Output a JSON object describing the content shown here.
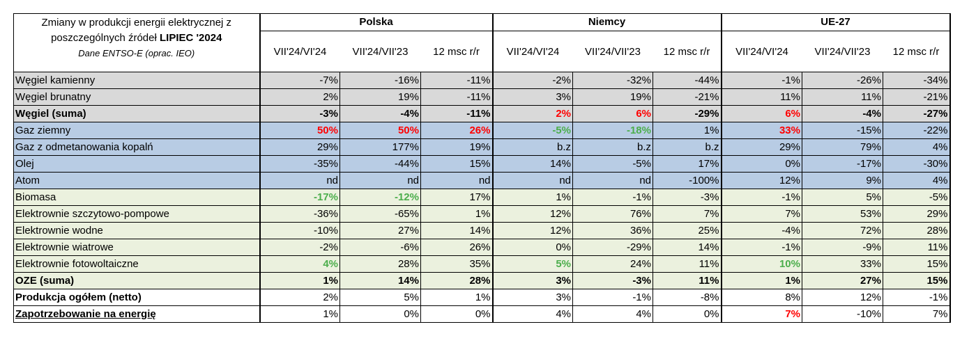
{
  "header": {
    "title_line1": "Zmiany w produkcji energii elektrycznej  z",
    "title_line2_prefix": "poszczególnych źródeł ",
    "title_line2_bold": "LIPIEC '2024",
    "source": "Dane  ENTSO-E (oprac. IEO)"
  },
  "groups": [
    "Polska",
    "Niemcy",
    "UE-27"
  ],
  "columns": [
    "VII'24/VI'24",
    "VII'24/VII'23",
    "12 msc r/r"
  ],
  "rows": [
    {
      "label": "Węgiel kamienny",
      "style": "grey",
      "bold": false,
      "values": [
        "-7%",
        "-16%",
        "-11%",
        "-2%",
        "-32%",
        "-44%",
        "-1%",
        "-26%",
        "-34%"
      ],
      "colors": [
        "",
        "",
        "",
        "",
        "",
        "",
        "",
        "",
        ""
      ]
    },
    {
      "label": "Węgiel brunatny",
      "style": "grey",
      "bold": false,
      "values": [
        "2%",
        "19%",
        "-11%",
        "3%",
        "19%",
        "-21%",
        "11%",
        "11%",
        "-21%"
      ],
      "colors": [
        "",
        "",
        "",
        "",
        "",
        "",
        "",
        "",
        ""
      ]
    },
    {
      "label": "Węgiel (suma)",
      "style": "grey",
      "bold": true,
      "values": [
        "-3%",
        "-4%",
        "-11%",
        "2%",
        "6%",
        "-29%",
        "6%",
        "-4%",
        "-27%"
      ],
      "colors": [
        "",
        "",
        "",
        "red",
        "red",
        "",
        "red",
        "",
        ""
      ]
    },
    {
      "label": "Gaz ziemny",
      "style": "blue",
      "bold": false,
      "values": [
        "50%",
        "50%",
        "26%",
        "-5%",
        "-18%",
        "1%",
        "33%",
        "-15%",
        "-22%"
      ],
      "colors": [
        "red",
        "red",
        "red",
        "green",
        "green",
        "",
        "red",
        "",
        ""
      ]
    },
    {
      "label": "Gaz z odmetanowania kopalń",
      "style": "blue",
      "bold": false,
      "values": [
        "29%",
        "177%",
        "19%",
        "b.z",
        "b.z",
        "b.z",
        "29%",
        "79%",
        "4%"
      ],
      "colors": [
        "",
        "",
        "",
        "",
        "",
        "",
        "",
        "",
        ""
      ]
    },
    {
      "label": "Olej",
      "style": "blue",
      "bold": false,
      "values": [
        "-35%",
        "-44%",
        "15%",
        "14%",
        "-5%",
        "17%",
        "0%",
        "-17%",
        "-30%"
      ],
      "colors": [
        "",
        "",
        "",
        "",
        "",
        "",
        "",
        "",
        ""
      ]
    },
    {
      "label": "Atom",
      "style": "blue",
      "bold": false,
      "values": [
        "nd",
        "nd",
        "nd",
        "nd",
        "nd",
        "-100%",
        "12%",
        "9%",
        "4%"
      ],
      "colors": [
        "",
        "",
        "",
        "",
        "",
        "",
        "",
        "",
        ""
      ]
    },
    {
      "label": "Biomasa",
      "style": "green",
      "bold": false,
      "values": [
        "-17%",
        "-12%",
        "17%",
        "1%",
        "-1%",
        "-3%",
        "-1%",
        "5%",
        "-5%"
      ],
      "colors": [
        "green",
        "green",
        "",
        "",
        "",
        "",
        "",
        "",
        ""
      ]
    },
    {
      "label": "Elektrownie szczytowo-pompowe",
      "style": "green",
      "bold": false,
      "values": [
        "-36%",
        "-65%",
        "1%",
        "12%",
        "76%",
        "7%",
        "7%",
        "53%",
        "29%"
      ],
      "colors": [
        "",
        "",
        "",
        "",
        "",
        "",
        "",
        "",
        ""
      ]
    },
    {
      "label": "Elektrownie wodne",
      "style": "green",
      "bold": false,
      "values": [
        "-10%",
        "27%",
        "14%",
        "12%",
        "36%",
        "25%",
        "-4%",
        "72%",
        "28%"
      ],
      "colors": [
        "",
        "",
        "",
        "",
        "",
        "",
        "",
        "",
        ""
      ]
    },
    {
      "label": "Elektrownie wiatrowe",
      "style": "green",
      "bold": false,
      "values": [
        "-2%",
        "-6%",
        "26%",
        "0%",
        "-29%",
        "14%",
        "-1%",
        "-9%",
        "11%"
      ],
      "colors": [
        "",
        "",
        "",
        "",
        "",
        "",
        "",
        "",
        ""
      ]
    },
    {
      "label": "Elektrownie fotowoltaiczne",
      "style": "green",
      "bold": false,
      "values": [
        "4%",
        "28%",
        "35%",
        "5%",
        "24%",
        "11%",
        "10%",
        "33%",
        "15%"
      ],
      "colors": [
        "green",
        "",
        "",
        "green",
        "",
        "",
        "green",
        "",
        ""
      ]
    },
    {
      "label": "OZE (suma)",
      "style": "green",
      "bold": true,
      "values": [
        "1%",
        "14%",
        "28%",
        "3%",
        "-3%",
        "11%",
        "1%",
        "27%",
        "15%"
      ],
      "colors": [
        "",
        "",
        "",
        "",
        "",
        "",
        "",
        "",
        ""
      ]
    },
    {
      "label": "Produkcja ogółem (netto)",
      "style": "white",
      "bold": false,
      "label_bold": true,
      "values": [
        "2%",
        "5%",
        "1%",
        "3%",
        "-1%",
        "-8%",
        "8%",
        "12%",
        "-1%"
      ],
      "colors": [
        "",
        "",
        "",
        "",
        "",
        "",
        "",
        "",
        ""
      ]
    },
    {
      "label": "Zapotrzebowanie na energię",
      "style": "white",
      "bold": false,
      "label_bold": true,
      "underline": true,
      "values": [
        "1%",
        "0%",
        "0%",
        "4%",
        "4%",
        "0%",
        "7%",
        "-10%",
        "7%"
      ],
      "colors": [
        "",
        "",
        "",
        "",
        "",
        "",
        "red",
        "",
        ""
      ]
    }
  ],
  "colors": {
    "red": "#ff0000",
    "green": "#4cae4c",
    "grey": "#d9d9d9",
    "blue": "#b8cce4",
    "lightgreen": "#ebf1de"
  }
}
